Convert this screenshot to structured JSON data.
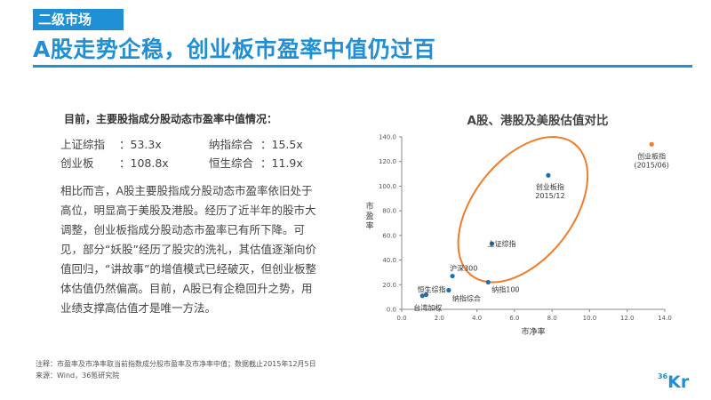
{
  "header": {
    "section_tag": "二级市场",
    "title": "A股走势企稳，创业板市盈率中值仍过百"
  },
  "left": {
    "intro": "目前，主要股指成分股动态市盈率中值情况：",
    "pe_values": [
      {
        "name": "上证综指",
        "value": "：53.3x"
      },
      {
        "name": "纳指综合",
        "value": "：15.5x"
      },
      {
        "name": "创业板",
        "value": "：108.8x"
      },
      {
        "name": "恒生综合",
        "value": "：11.9x"
      }
    ],
    "paragraph": "相比而言，A股主要股指成分股动态市盈率依旧处于高位，明显高于美股及港股。经历了近半年的股市大调整，创业板指成分股动态市盈率已有所下降。可见，部分“妖股”经历了股灾的洗礼，其估值逐渐向价值回归，“讲故事”的增值模式已经破灭，但创业板整体估值仍然偏高。目前，A股已有企稳回升之势，用业绩支撑高估值才是唯一方法。"
  },
  "chart_data": {
    "type": "scatter",
    "title": "A股、港股及美股估值对比",
    "xlabel": "市净率",
    "ylabel": "市盈率",
    "xlim": [
      0,
      14
    ],
    "ylim": [
      0,
      140
    ],
    "xticks": [
      "0.0",
      "2.0",
      "4.0",
      "6.0",
      "8.0",
      "10.0",
      "12.0",
      "14.0"
    ],
    "yticks": [
      "0.0",
      "20.0",
      "40.0",
      "60.0",
      "80.0",
      "100.0",
      "120.0",
      "140.0"
    ],
    "points": [
      {
        "label": "台湾加权",
        "x": 1.1,
        "y": 11,
        "color": "#1f6fb5"
      },
      {
        "label": "恒生综指",
        "x": 1.3,
        "y": 11.9,
        "color": "#1f6fb5"
      },
      {
        "label": "纳指综合",
        "x": 2.5,
        "y": 15.5,
        "color": "#1f6fb5"
      },
      {
        "label": "沪深300",
        "x": 2.7,
        "y": 27,
        "color": "#1f6fb5"
      },
      {
        "label": "纳指100",
        "x": 4.6,
        "y": 22,
        "color": "#1f6fb5"
      },
      {
        "label": "上证综指",
        "x": 4.8,
        "y": 53.3,
        "color": "#1f6fb5"
      },
      {
        "label": "创业板指 2015/12",
        "x": 7.8,
        "y": 108.8,
        "color": "#1f6fb5"
      },
      {
        "label": "创业板指 (2015/06)",
        "x": 13.3,
        "y": 134,
        "color": "#f07c2a"
      }
    ],
    "highlight_color": "#f07c2a"
  },
  "footer": {
    "note": "注释：市盈率及市净率取当前指数成分股市盈率及市净率中值；数据截止2015年12月5日",
    "source": "来源：Wind，36氪研究院",
    "logo_small": "36",
    "logo_big": "Kr"
  }
}
